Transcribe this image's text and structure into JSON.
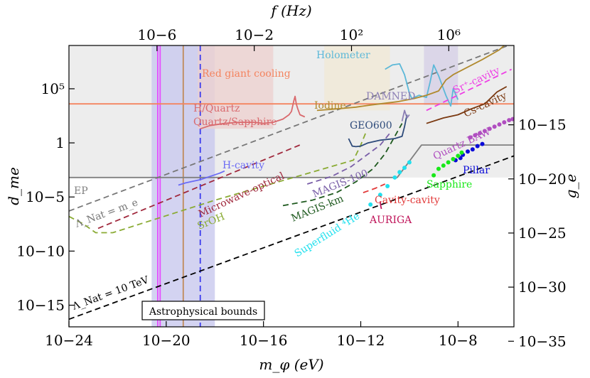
{
  "chart_data": {
    "type": "line",
    "xlabel": "m_φ (eV)",
    "x_scale": "log",
    "xlim": [
      -24,
      -5.7
    ],
    "x_ticks": [
      {
        "exp": -24,
        "label": "10−24"
      },
      {
        "exp": -20,
        "label": "10−20"
      },
      {
        "exp": -16,
        "label": "10−16"
      },
      {
        "exp": -12,
        "label": "10−12"
      },
      {
        "exp": -8,
        "label": "10−8"
      }
    ],
    "ylabel_left": "d_me",
    "y_scale": "log",
    "ylim": [
      -17,
      9
    ],
    "y_ticks": [
      {
        "exp": 5,
        "label": "10⁵"
      },
      {
        "exp": 0,
        "label": "1"
      },
      {
        "exp": -5,
        "label": "10−5"
      },
      {
        "exp": -10,
        "label": "10−10"
      },
      {
        "exp": -15,
        "label": "10−15"
      }
    ],
    "top_axis": {
      "label": "f (Hz)",
      "ticks": [
        {
          "log_f": -6,
          "label": "10−6"
        },
        {
          "log_f": -2,
          "label": "10−2"
        },
        {
          "log_f": 2,
          "label": "10²"
        },
        {
          "log_f": 6,
          "label": "10⁶"
        }
      ]
    },
    "right_axis": {
      "label": "g_e",
      "ticks": [
        {
          "log_g": -15,
          "label": "10−15"
        },
        {
          "log_g": -20,
          "label": "10−20"
        },
        {
          "log_g": -25,
          "label": "10−25"
        },
        {
          "log_g": -30,
          "label": "10−30"
        },
        {
          "log_g": -35,
          "label": "10−35"
        }
      ]
    },
    "bound_label": "Astrophysical bounds",
    "series": [
      {
        "name": "Red giant cooling",
        "kind": "line",
        "color": "#f4845f",
        "points": [
          [
            -24,
            3.6
          ],
          [
            -5.7,
            3.6
          ]
        ]
      },
      {
        "name": "EP",
        "kind": "line",
        "color": "#808080",
        "points": [
          [
            -24,
            -3.2
          ],
          [
            -10.5,
            -3.2
          ],
          [
            -9.5,
            -0.2
          ],
          [
            -5.7,
            -0.2
          ]
        ]
      },
      {
        "name": "Λ_Nat = m_e",
        "kind": "dashed",
        "color": "#777777",
        "points": [
          [
            -24,
            -6.3
          ],
          [
            -5.7,
            9.2
          ]
        ]
      },
      {
        "name": "Λ_Nat = 10 TeV",
        "kind": "dashed",
        "color": "#000000",
        "points": [
          [
            -24,
            -16.3
          ],
          [
            -5.7,
            -1.2
          ]
        ]
      },
      {
        "name": "H/Quartz Quartz/Sapphire",
        "kind": "line",
        "color": "#d9696d",
        "points": [
          [
            -18.6,
            1.3
          ],
          [
            -18.2,
            1.6
          ],
          [
            -17.6,
            1.8
          ],
          [
            -17.0,
            1.9
          ],
          [
            -16.4,
            1.9
          ],
          [
            -16.0,
            1.8
          ],
          [
            -15.6,
            1.9
          ],
          [
            -15.2,
            2.2
          ],
          [
            -14.95,
            2.6
          ],
          [
            -14.85,
            2.9
          ],
          [
            -14.75,
            3.9
          ],
          [
            -14.7,
            4.3
          ],
          [
            -14.65,
            3.6
          ],
          [
            -14.6,
            3.2
          ],
          [
            -14.5,
            2.6
          ],
          [
            -14.3,
            2.4
          ]
        ]
      },
      {
        "name": "H-cavity",
        "kind": "line",
        "color": "#6b6bf5",
        "points": [
          [
            -19.5,
            -3.9
          ],
          [
            -19.2,
            -3.7
          ],
          [
            -19.0,
            -3.6
          ],
          [
            -18.6,
            -3.4
          ],
          [
            -18.2,
            -3.1
          ],
          [
            -17.8,
            -2.8
          ],
          [
            -17.6,
            -2.6
          ]
        ]
      },
      {
        "name": "Microwave-optical",
        "kind": "dashed",
        "color": "#a0283c",
        "points": [
          [
            -22.8,
            -7.9
          ],
          [
            -14.4,
            -0.1
          ]
        ]
      },
      {
        "name": "SrOH",
        "kind": "dashed",
        "color": "#8aab34",
        "points": [
          [
            -24,
            -6.8
          ],
          [
            -23.4,
            -7.5
          ],
          [
            -22.9,
            -8.3
          ],
          [
            -22.2,
            -8.3
          ],
          [
            -18.0,
            -5.3
          ],
          [
            -14.0,
            -2.7
          ],
          [
            -12.3,
            -1.6
          ],
          [
            -12.0,
            -0.2
          ],
          [
            -11.8,
            0.9
          ]
        ]
      },
      {
        "name": "MAGIS-100",
        "kind": "dashed",
        "color": "#7a5fa8",
        "points": [
          [
            -14.2,
            -3.8
          ],
          [
            -13.2,
            -3.1
          ],
          [
            -12.4,
            -2.2
          ],
          [
            -11.8,
            -1.2
          ],
          [
            -11.2,
            -0.2
          ],
          [
            -10.8,
            0.9
          ]
        ]
      },
      {
        "name": "MAGIS-km",
        "kind": "dashed",
        "color": "#1f5a1f",
        "points": [
          [
            -15.2,
            -5.8
          ],
          [
            -14.0,
            -5.3
          ],
          [
            -13.0,
            -4.6
          ],
          [
            -12.2,
            -3.6
          ],
          [
            -11.5,
            -2.4
          ],
          [
            -11.0,
            -1.0
          ],
          [
            -10.6,
            0.6
          ],
          [
            -10.3,
            1.8
          ]
        ]
      },
      {
        "name": "GEO600",
        "kind": "line",
        "color": "#2d4a7a",
        "points": [
          [
            -12.5,
            0.4
          ],
          [
            -12.35,
            -0.3
          ],
          [
            -12.2,
            -0.35
          ],
          [
            -12.0,
            -0.3
          ],
          [
            -11.7,
            0
          ],
          [
            -11.2,
            0.25
          ],
          [
            -10.6,
            0.4
          ],
          [
            -10.3,
            0.6
          ],
          [
            -10.2,
            1.5
          ],
          [
            -10.1,
            2.6
          ]
        ]
      },
      {
        "name": "DAMNED",
        "kind": "line",
        "color": "#8c7fb5",
        "points": [
          [
            -10.3,
            2.0
          ],
          [
            -10.2,
            3.0
          ],
          [
            -10.1,
            2.3
          ],
          [
            -10.0,
            2.6
          ]
        ]
      },
      {
        "name": "Holometer",
        "kind": "line",
        "color": "#5cb8d8",
        "points": [
          [
            -11.0,
            6.8
          ],
          [
            -10.7,
            7.2
          ],
          [
            -10.4,
            7.3
          ],
          [
            -10.2,
            6.3
          ],
          [
            -10.0,
            4.6
          ],
          [
            -9.9,
            4.1
          ],
          [
            -9.6,
            4.4
          ],
          [
            -9.3,
            4.2
          ],
          [
            -9.15,
            5.6
          ],
          [
            -9.0,
            7.2
          ],
          [
            -8.8,
            6.2
          ],
          [
            -8.5,
            4.4
          ],
          [
            -8.3,
            3.4
          ],
          [
            -8.2,
            5.0
          ],
          [
            -8.0,
            4.0
          ]
        ]
      },
      {
        "name": "Iodine",
        "kind": "line",
        "color": "#b08a2e",
        "points": [
          [
            -13.8,
            3.0
          ],
          [
            -13.2,
            3.1
          ],
          [
            -12.2,
            3.3
          ],
          [
            -11.6,
            3.5
          ],
          [
            -10.5,
            3.8
          ],
          [
            -9.8,
            4.1
          ],
          [
            -9.3,
            4.4
          ],
          [
            -8.8,
            4.8
          ],
          [
            -8.5,
            5.8
          ],
          [
            -8.2,
            6.3
          ],
          [
            -7.0,
            7.7
          ],
          [
            -6.3,
            8.6
          ],
          [
            -6.1,
            9.0
          ]
        ]
      },
      {
        "name": "Sr⁺-cavity",
        "kind": "dashed",
        "color": "#ee3ee6",
        "points": [
          [
            -9.3,
            3.0
          ],
          [
            -5.8,
            6.8
          ]
        ]
      },
      {
        "name": "Cs-cavity",
        "kind": "line",
        "color": "#7a3810",
        "points": [
          [
            -9.3,
            1.8
          ],
          [
            -8.6,
            2.3
          ],
          [
            -8.0,
            2.6
          ],
          [
            -7.5,
            3.1
          ],
          [
            -6.9,
            3.6
          ],
          [
            -6.4,
            4.7
          ],
          [
            -6.0,
            5.2
          ]
        ]
      },
      {
        "name": "Quartz BAW",
        "kind": "scatter",
        "color": "#b04ec0",
        "points": [
          [
            -7.5,
            0.5
          ],
          [
            -7.3,
            0.7
          ],
          [
            -7.1,
            0.9
          ],
          [
            -6.9,
            1.1
          ],
          [
            -6.7,
            1.3
          ],
          [
            -6.5,
            1.5
          ],
          [
            -6.3,
            1.7
          ],
          [
            -6.1,
            1.9
          ],
          [
            -5.9,
            2.1
          ],
          [
            -5.75,
            2.2
          ]
        ]
      },
      {
        "name": "Pillar",
        "kind": "scatter",
        "color": "#0a0ad8",
        "points": [
          [
            -8.1,
            -1.6
          ],
          [
            -7.9,
            -1.4
          ],
          [
            -7.8,
            -1.1
          ],
          [
            -7.6,
            -0.8
          ],
          [
            -7.4,
            -0.6
          ],
          [
            -7.2,
            -0.3
          ],
          [
            -7.0,
            -0.1
          ]
        ]
      },
      {
        "name": "Sapphire",
        "kind": "scatter",
        "color": "#19e819",
        "points": [
          [
            -9.0,
            -3.0
          ],
          [
            -8.8,
            -2.4
          ],
          [
            -8.6,
            -2.1
          ],
          [
            -8.4,
            -1.8
          ],
          [
            -8.2,
            -1.5
          ],
          [
            -8.0,
            -1.2
          ],
          [
            -7.85,
            -0.9
          ]
        ]
      },
      {
        "name": "Superfluid ⁴He",
        "kind": "scatter",
        "color": "#22e0ee",
        "points": [
          [
            -11.6,
            -5.7
          ],
          [
            -11.2,
            -4.8
          ],
          [
            -10.9,
            -4.0
          ],
          [
            -10.6,
            -3.2
          ],
          [
            -10.4,
            -2.7
          ],
          [
            -10.2,
            -2.3
          ],
          [
            -10.0,
            -1.8
          ]
        ]
      },
      {
        "name": "Cavity-cavity",
        "kind": "dashed",
        "color": "#e23a3a",
        "points": [
          [
            -11.9,
            -4.6
          ],
          [
            -11.4,
            -4.2
          ],
          [
            -11.0,
            -3.8
          ]
        ]
      },
      {
        "name": "AURIGA",
        "kind": "line",
        "color": "#c0155a",
        "points": [
          [
            -11.2,
            -5.4
          ],
          [
            -11.18,
            -5.8
          ],
          [
            -11.15,
            -6.1
          ]
        ]
      }
    ],
    "vertical_lines": [
      {
        "x": -20.35,
        "color": "#e64dff"
      },
      {
        "x": -20.25,
        "color": "#e64dff"
      },
      {
        "x": -19.3,
        "color": "#c08a5a"
      },
      {
        "x": -18.6,
        "color": "#3a3aee",
        "dashed": true
      }
    ],
    "shaded_regions": [
      {
        "x0": -24,
        "x1": -5.7,
        "y0": -3.2,
        "y1": 9,
        "color": "#e8e8e8"
      },
      {
        "x0": -20.6,
        "x1": -18.0,
        "y0": -17,
        "y1": 9,
        "color": "#c8c8ee"
      },
      {
        "x0": -18.7,
        "x1": -15.6,
        "y0": 1.3,
        "y1": 9,
        "color": "#ecd1cf"
      },
      {
        "x0": -13.5,
        "x1": -10.8,
        "y0": 3.0,
        "y1": 9,
        "color": "#f0e8d6"
      },
      {
        "x0": -9.4,
        "x1": -8.0,
        "y0": 3.5,
        "y1": 9,
        "color": "#d6d0e6"
      }
    ],
    "annotations": [
      {
        "text": "Red giant cooling",
        "color": "#f4845f"
      },
      {
        "text": "H/Quartz",
        "color": "#d9696d"
      },
      {
        "text": "Quartz/Sapphire",
        "color": "#d9696d"
      },
      {
        "text": "Holometer",
        "color": "#5cb8d8"
      },
      {
        "text": "Iodine",
        "color": "#b08a2e"
      },
      {
        "text": "DAMNED",
        "color": "#8c7fb5"
      },
      {
        "text": "Sr⁺-cavity",
        "color": "#ee3ee6"
      },
      {
        "text": "Cs-cavity",
        "color": "#7a3810"
      },
      {
        "text": "GEO600",
        "color": "#2d4a7a"
      },
      {
        "text": "Quartz BAW",
        "color": "#b04ec0"
      },
      {
        "text": "Pillar",
        "color": "#0a0ad8"
      },
      {
        "text": "Sapphire",
        "color": "#19e819"
      },
      {
        "text": "H-cavity",
        "color": "#6b6bf5"
      },
      {
        "text": "EP",
        "color": "#808080"
      },
      {
        "text": "Microwave-optical",
        "color": "#a0283c"
      },
      {
        "text": "MAGIS-100",
        "color": "#7a5fa8"
      },
      {
        "text": "MAGIS-km",
        "color": "#1f5a1f"
      },
      {
        "text": "SrOH",
        "color": "#8aab34"
      },
      {
        "text": "Cavity-cavity",
        "color": "#e23a3a"
      },
      {
        "text": "AURIGA",
        "color": "#c0155a"
      },
      {
        "text": "Superfluid ⁴He",
        "color": "#22e0ee"
      },
      {
        "text": "Λ_Nat = m_e",
        "color": "#777777"
      },
      {
        "text": "Λ_Nat = 10 TeV",
        "color": "#000000"
      }
    ]
  }
}
